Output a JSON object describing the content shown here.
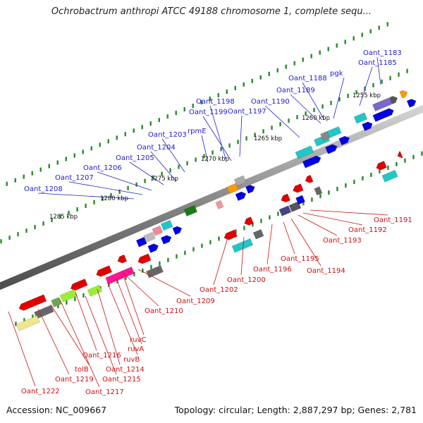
{
  "title": "Ochrobactrum anthropi ATCC 49188 chromosome 1, complete sequ...",
  "footer": {
    "accession": "Accession: NC_009667",
    "topology": "Topology: circular; Length: 2,887,297 bp; Genes: 2,781"
  },
  "colors": {
    "forward_label": "#2020cc",
    "reverse_label": "#cc1010",
    "backbone": "#7a7a7a",
    "ticks": "#2a8a2a"
  },
  "kbp_labels": [
    "1255 kbp",
    "1260 kbp",
    "1265 kbp",
    "1270 kbp",
    "1275 kbp",
    "1280 kbp",
    "1285 kbp"
  ],
  "forward_genes": [
    "Oant_1183",
    "Oant_1185",
    "pgk",
    "Oant_1188",
    "Oant_1189",
    "Oant_1190",
    "Oant_1197",
    "Oant_1198",
    "Oant_1199",
    "rpmE",
    "Oant_1203",
    "Oant_1204",
    "Oant_1205",
    "Oant_1206",
    "Oant_1207",
    "Oant_1208"
  ],
  "reverse_genes": [
    "Oant_1191",
    "Oant_1192",
    "Oant_1193",
    "Oant_1194",
    "Oant_1195",
    "Oant_1196",
    "Oant_1200",
    "Oant_1202",
    "Oant_1209",
    "Oant_1210",
    "ruvC",
    "ruvA",
    "ruvB",
    "Oant_1214",
    "Oant_1215",
    "Oant_1216",
    "Oant_1217",
    "tolB",
    "Oant_1219",
    "Oant_1222"
  ]
}
